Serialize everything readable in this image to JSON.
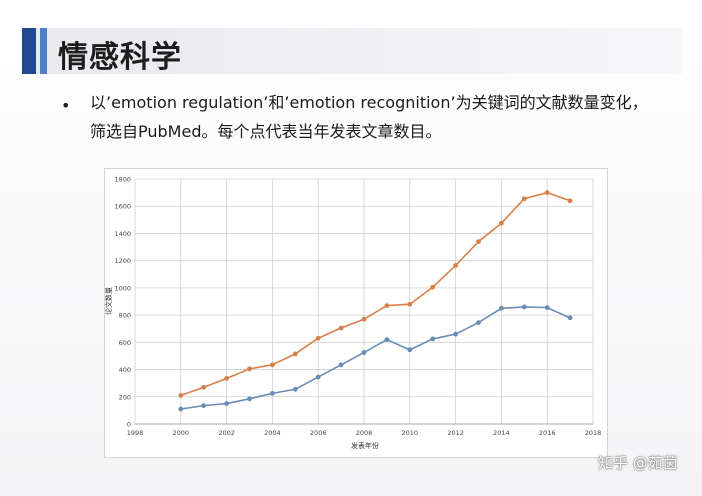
{
  "slide": {
    "title": "情感科学",
    "bullet_symbol": "•",
    "bullet_text": "以’emotion regulation’和’emotion recognition’为关键词的文献数量变化，筛选自PubMed。每个点代表当年发表文章数目。",
    "watermark": "知乎 @茹茵"
  },
  "colors": {
    "accent_dark": "#1f4a8f",
    "accent_light": "#4f7fc6",
    "series_orange": "#d8804a",
    "series_blue": "#6a8db5",
    "grid": "#d0d0d0"
  },
  "chart_data": {
    "type": "line",
    "xlabel": "发表年份",
    "ylabel": "论文数量",
    "xlim": [
      1998,
      2018
    ],
    "ylim": [
      0,
      1800
    ],
    "x_ticks": [
      1998,
      2000,
      2002,
      2004,
      2006,
      2008,
      2010,
      2012,
      2014,
      2016,
      2018
    ],
    "y_ticks": [
      0,
      200,
      400,
      600,
      800,
      1000,
      1200,
      1400,
      1600,
      1800
    ],
    "grid": true,
    "series": [
      {
        "color": "#d8804a",
        "x": [
          2000,
          2001,
          2002,
          2003,
          2004,
          2005,
          2006,
          2007,
          2008,
          2009,
          2010,
          2011,
          2012,
          2013,
          2014,
          2015,
          2016,
          2017
        ],
        "values": [
          210,
          270,
          335,
          405,
          435,
          515,
          630,
          705,
          770,
          870,
          880,
          1005,
          1165,
          1340,
          1475,
          1655,
          1700,
          1640
        ]
      },
      {
        "color": "#6a8db5",
        "x": [
          2000,
          2001,
          2002,
          2003,
          2004,
          2005,
          2006,
          2007,
          2008,
          2009,
          2010,
          2011,
          2012,
          2013,
          2014,
          2015,
          2016,
          2017
        ],
        "values": [
          110,
          135,
          150,
          185,
          225,
          255,
          345,
          435,
          525,
          620,
          545,
          625,
          660,
          745,
          850,
          860,
          855,
          780
        ]
      }
    ]
  }
}
